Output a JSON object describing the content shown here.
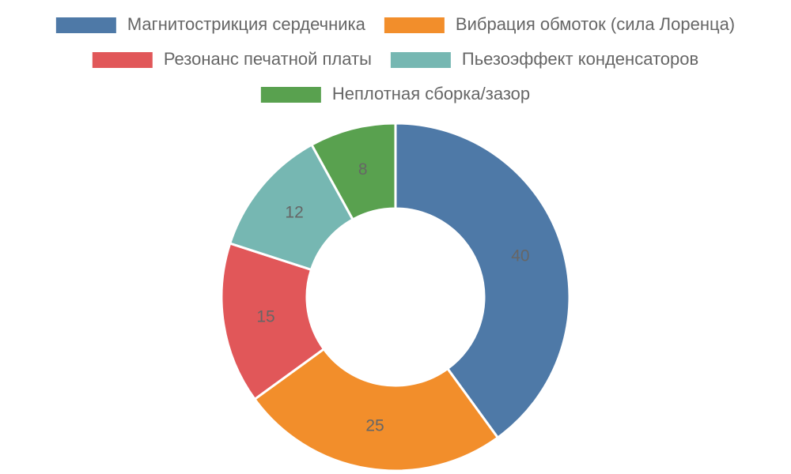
{
  "chart_data": {
    "type": "doughnut",
    "categories": [
      "Магнитострикция сердечника",
      "Вибрация обмоток (сила Лоренца)",
      "Резонанс печатной платы",
      "Пьезоэффект конденсаторов",
      "Неплотная сборка/зазор"
    ],
    "values": [
      40,
      25,
      15,
      12,
      8
    ],
    "colors": [
      "#4e79a7",
      "#f28e2b",
      "#e15759",
      "#76b7b2",
      "#59a14f"
    ],
    "legend": "top"
  }
}
